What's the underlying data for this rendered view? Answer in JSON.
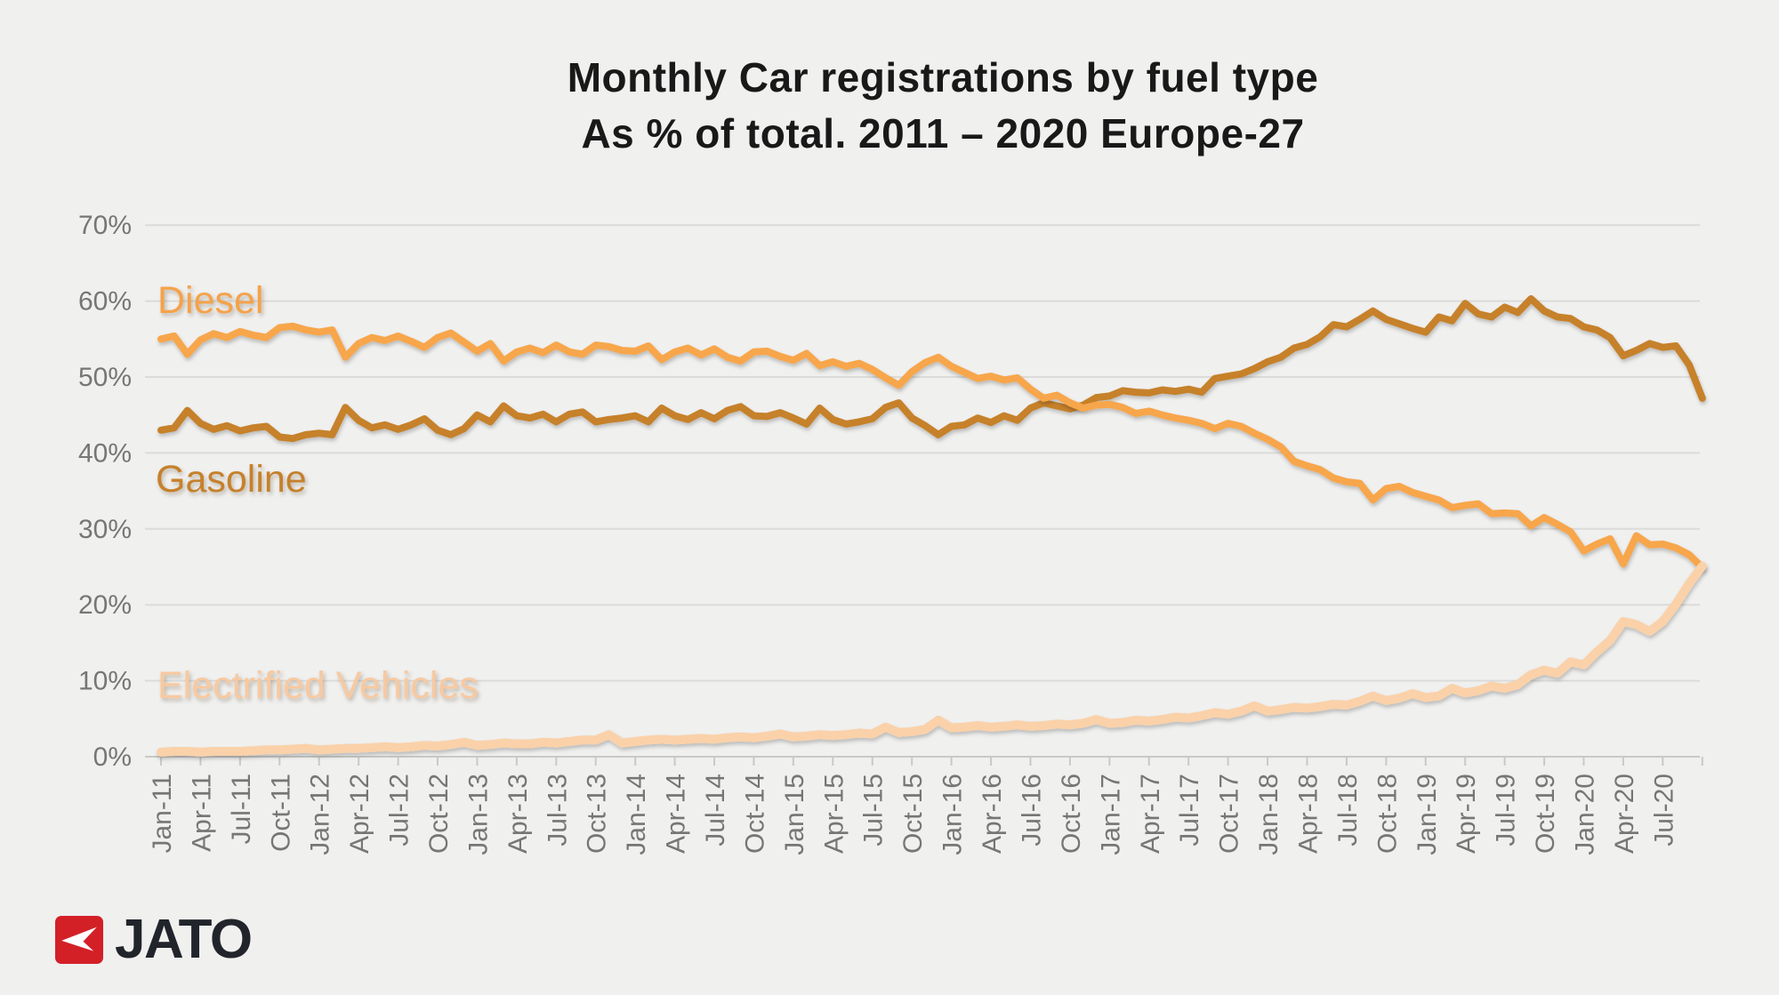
{
  "title": {
    "line1": "Monthly Car registrations by fuel type",
    "line2": "As % of total. 2011 – 2020 Europe-27"
  },
  "branding": {
    "logo_text": "JATO",
    "logo_color": "#d32027",
    "logo_arrow_color": "#ffffff",
    "logo_text_color": "#21252b"
  },
  "colors": {
    "background": "#f0f0ef",
    "gridline": "#dbdbd9",
    "axis_line": "#c9c9c7",
    "axis_text": "#767676",
    "title_text": "#191919"
  },
  "chart_data": {
    "type": "line",
    "title": "Monthly Car registrations by fuel type — As % of total. 2011 – 2020 Europe-27",
    "xlabel": "",
    "ylabel": "",
    "x_unit": "month",
    "x_start": "Jan-2011",
    "x_end": "Oct-2020",
    "grid": true,
    "legend_position": "inline-labels",
    "ylim": [
      0,
      70
    ],
    "y_tick_labels": [
      "0%",
      "10%",
      "20%",
      "30%",
      "40%",
      "50%",
      "60%",
      "70%"
    ],
    "x_tick_labels": [
      "Jan-11",
      "Apr-11",
      "Jul-11",
      "Oct-11",
      "Jan-12",
      "Apr-12",
      "Jul-12",
      "Oct-12",
      "Jan-13",
      "Apr-13",
      "Jul-13",
      "Oct-13",
      "Jan-14",
      "Apr-14",
      "Jul-14",
      "Oct-14",
      "Jan-15",
      "Apr-15",
      "Jul-15",
      "Oct-15",
      "Jan-16",
      "Apr-16",
      "Jul-16",
      "Oct-16",
      "Jan-17",
      "Apr-17",
      "Jul-17",
      "Oct-17",
      "Jan-18",
      "Apr-18",
      "Jul-18",
      "Oct-18",
      "Jan-19",
      "Apr-19",
      "Jul-19",
      "Oct-19",
      "Jan-20",
      "Apr-20",
      "Jul-20"
    ],
    "x_label_every_n_months": 3,
    "series": [
      {
        "name": "Diesel",
        "color": "#f7a64b",
        "label_color": "#f5a24a",
        "values": [
          55.0,
          55.4,
          53.0,
          54.9,
          55.7,
          55.2,
          56.0,
          55.5,
          55.2,
          56.5,
          56.7,
          56.2,
          55.9,
          56.2,
          52.6,
          54.4,
          55.2,
          54.8,
          55.4,
          54.7,
          53.9,
          55.2,
          55.8,
          54.6,
          53.4,
          54.4,
          52.1,
          53.3,
          53.8,
          53.2,
          54.2,
          53.3,
          53.0,
          54.2,
          54.0,
          53.5,
          53.4,
          54.1,
          52.3,
          53.3,
          53.8,
          52.9,
          53.7,
          52.6,
          52.1,
          53.3,
          53.4,
          52.7,
          52.2,
          53.1,
          51.5,
          52.0,
          51.4,
          51.8,
          51.0,
          49.9,
          48.9,
          50.7,
          51.9,
          52.6,
          51.4,
          50.6,
          49.8,
          50.1,
          49.6,
          49.9,
          48.4,
          47.2,
          47.6,
          46.6,
          45.9,
          46.3,
          46.4,
          46.0,
          45.2,
          45.5,
          45.0,
          44.6,
          44.3,
          43.9,
          43.2,
          43.9,
          43.5,
          42.6,
          41.8,
          40.8,
          38.9,
          38.3,
          37.8,
          36.7,
          36.2,
          36.0,
          33.8,
          35.3,
          35.6,
          34.8,
          34.3,
          33.8,
          32.8,
          33.1,
          33.3,
          32.0,
          32.1,
          32.0,
          30.4,
          31.5,
          30.6,
          29.6,
          27.1,
          28.0,
          28.7,
          25.4,
          29.1,
          27.9,
          28.0,
          27.5,
          26.6,
          24.9
        ]
      },
      {
        "name": "Gasoline",
        "color": "#c6812c",
        "label_color": "#c6812c",
        "values": [
          43.0,
          43.3,
          45.6,
          43.9,
          43.1,
          43.6,
          42.9,
          43.3,
          43.5,
          42.1,
          41.9,
          42.4,
          42.6,
          42.4,
          46.0,
          44.3,
          43.3,
          43.7,
          43.1,
          43.7,
          44.5,
          43.0,
          42.4,
          43.2,
          45.0,
          44.1,
          46.2,
          44.9,
          44.6,
          45.1,
          44.1,
          45.1,
          45.4,
          44.1,
          44.4,
          44.6,
          44.9,
          44.1,
          45.9,
          44.9,
          44.4,
          45.3,
          44.5,
          45.6,
          46.1,
          44.9,
          44.8,
          45.3,
          44.6,
          43.8,
          45.9,
          44.4,
          43.8,
          44.1,
          44.5,
          46.0,
          46.6,
          44.6,
          43.6,
          42.4,
          43.5,
          43.7,
          44.6,
          44.0,
          44.9,
          44.3,
          45.9,
          46.6,
          46.2,
          45.8,
          46.3,
          47.3,
          47.5,
          48.2,
          48.0,
          47.9,
          48.3,
          48.1,
          48.4,
          48.0,
          49.8,
          50.1,
          50.4,
          51.1,
          52.0,
          52.6,
          53.8,
          54.3,
          55.3,
          56.9,
          56.6,
          57.6,
          58.7,
          57.6,
          57.0,
          56.4,
          55.9,
          57.9,
          57.4,
          59.7,
          58.3,
          57.9,
          59.2,
          58.5,
          60.3,
          58.7,
          57.9,
          57.7,
          56.6,
          56.2,
          55.2,
          52.8,
          53.5,
          54.4,
          53.9,
          54.1,
          51.6,
          47.2
        ]
      },
      {
        "name": "Electrified Vehicles",
        "color": "#fad1a9",
        "label_color": "#f8c9a0",
        "values": [
          0.6,
          0.7,
          0.7,
          0.6,
          0.7,
          0.7,
          0.7,
          0.8,
          0.9,
          0.9,
          1.0,
          1.1,
          0.9,
          1.0,
          1.1,
          1.1,
          1.2,
          1.3,
          1.2,
          1.3,
          1.5,
          1.4,
          1.6,
          1.9,
          1.5,
          1.6,
          1.8,
          1.7,
          1.7,
          1.9,
          1.8,
          2.0,
          2.2,
          2.2,
          2.9,
          1.8,
          2.0,
          2.2,
          2.3,
          2.2,
          2.3,
          2.4,
          2.3,
          2.5,
          2.6,
          2.5,
          2.7,
          3.0,
          2.6,
          2.7,
          2.9,
          2.8,
          2.9,
          3.1,
          3.0,
          3.9,
          3.2,
          3.3,
          3.6,
          4.8,
          3.8,
          3.9,
          4.1,
          3.9,
          4.0,
          4.2,
          4.0,
          4.1,
          4.3,
          4.2,
          4.4,
          4.9,
          4.4,
          4.5,
          4.8,
          4.7,
          4.9,
          5.2,
          5.1,
          5.4,
          5.8,
          5.6,
          6.0,
          6.7,
          6.0,
          6.2,
          6.5,
          6.4,
          6.6,
          6.9,
          6.8,
          7.3,
          8.0,
          7.4,
          7.7,
          8.3,
          7.8,
          8.0,
          9.0,
          8.4,
          8.7,
          9.3,
          9.0,
          9.5,
          10.8,
          11.4,
          11.0,
          12.5,
          12.1,
          13.8,
          15.3,
          17.8,
          17.4,
          16.5,
          17.8,
          20.1,
          22.8,
          25.1
        ]
      }
    ]
  }
}
